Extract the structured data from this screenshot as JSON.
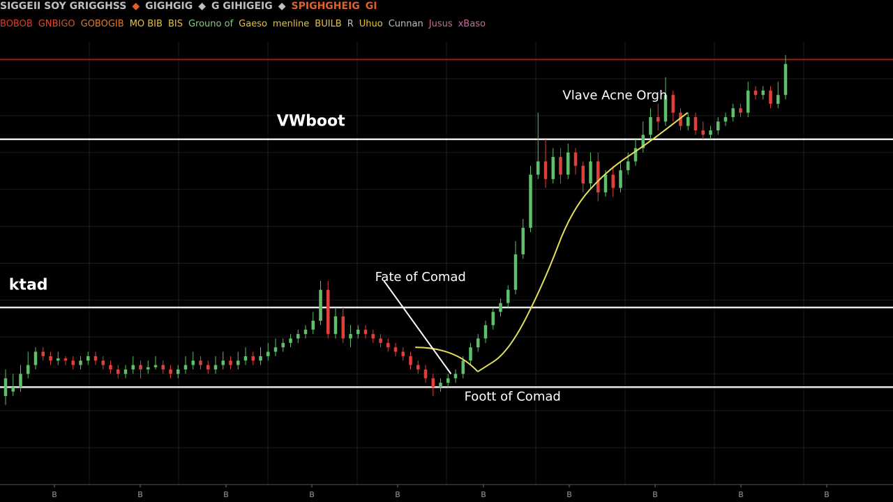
{
  "header": {
    "line1": [
      {
        "text": "SIGGEII SOY GRIGGHSS",
        "color": "#bfbfbf"
      },
      {
        "text": "◆",
        "color": "#e0602a"
      },
      {
        "text": "GIGHGIG",
        "color": "#bfbfbf"
      },
      {
        "text": "◆",
        "color": "#bfbfbf"
      },
      {
        "text": "G GIHIGEIG",
        "color": "#bfbfbf"
      },
      {
        "text": "◆",
        "color": "#bfbfbf"
      },
      {
        "text": "SPIGHGHEIG",
        "color": "#e0602a"
      },
      {
        "text": "GI",
        "color": "#e0602a"
      }
    ],
    "line2": [
      {
        "text": "BOBOB",
        "color": "#e03a2a"
      },
      {
        "text": "GNBIGO",
        "color": "#e04a2a"
      },
      {
        "text": "GOBOGIB",
        "color": "#e07a2a"
      },
      {
        "text": "MO BIB",
        "color": "#e8c23a"
      },
      {
        "text": "BIS",
        "color": "#e8c23a"
      },
      {
        "text": "Grouno of",
        "color": "#7fd17a"
      },
      {
        "text": "Gaeso",
        "color": "#e8c23a"
      },
      {
        "text": "menline",
        "color": "#e8c23a"
      },
      {
        "text": "BUILB",
        "color": "#e8c23a"
      },
      {
        "text": "R",
        "color": "#bfbfbf"
      },
      {
        "text": "Uhuo",
        "color": "#e8c23a"
      },
      {
        "text": "Cunnan",
        "color": "#bfbfbf"
      },
      {
        "text": "Jusus",
        "color": "#c86a9a"
      },
      {
        "text": "xBaso",
        "color": "#c86a9a"
      }
    ]
  },
  "chart_data": {
    "type": "candlestick",
    "title": "",
    "xlabel": "",
    "ylabel": "",
    "ylim": [
      0,
      100
    ],
    "x_ticks": [
      "B",
      "B",
      "B",
      "B",
      "B",
      "B",
      "B",
      "B",
      "B",
      "B"
    ],
    "colors": {
      "up": "#5fbf6a",
      "down": "#e0403a",
      "level": "#e8e8e8",
      "top_level": "#9b1c1c",
      "curve": "#e4e05a",
      "trendline": "#ffffff"
    },
    "levels": [
      {
        "name": "top_level",
        "value": 96.0
      },
      {
        "name": "VWboot",
        "label": "VWboot",
        "value": 78.0
      },
      {
        "name": "ktad",
        "label": "ktad",
        "value": 40.0
      },
      {
        "name": "base",
        "value": 22.0
      }
    ],
    "annotations": [
      {
        "text": "Vlave Acne Orgh",
        "x": 63,
        "y": 87
      },
      {
        "text": "VWboot",
        "x": 31,
        "y": 81
      },
      {
        "text": "ktad",
        "x": 1,
        "y": 44
      },
      {
        "text": "Fate of Comad",
        "x": 42,
        "y": 46
      },
      {
        "text": "Foott of Comad",
        "x": 52,
        "y": 19
      }
    ],
    "curve": [
      [
        53.5,
        25.5
      ],
      [
        57,
        30
      ],
      [
        61,
        46
      ],
      [
        64,
        62
      ],
      [
        68,
        71
      ],
      [
        72.5,
        77
      ],
      [
        77,
        84
      ]
    ],
    "trendline": [
      [
        43,
        46
      ],
      [
        50.5,
        25
      ]
    ],
    "candles": [
      [
        20,
        24,
        18,
        26
      ],
      [
        21,
        22,
        20,
        25
      ],
      [
        22,
        25,
        21,
        27
      ],
      [
        25,
        27,
        24,
        30
      ],
      [
        27,
        30,
        26,
        31
      ],
      [
        30,
        29,
        28,
        31
      ],
      [
        29,
        28,
        27,
        30
      ],
      [
        28,
        28.5,
        27,
        30
      ],
      [
        28.5,
        28,
        27,
        29
      ],
      [
        28,
        27,
        26,
        29
      ],
      [
        27,
        28,
        26,
        29
      ],
      [
        28,
        29,
        27,
        30
      ],
      [
        29,
        28,
        27,
        30
      ],
      [
        28,
        27,
        26,
        29
      ],
      [
        27,
        26,
        25,
        28
      ],
      [
        26,
        25,
        24,
        27
      ],
      [
        25,
        26,
        24,
        27
      ],
      [
        26,
        27,
        25,
        29
      ],
      [
        27,
        26,
        24,
        28
      ],
      [
        26,
        26.5,
        25,
        28
      ],
      [
        26.5,
        27,
        26,
        29
      ],
      [
        27,
        26,
        25,
        28
      ],
      [
        26,
        25,
        24,
        27
      ],
      [
        25,
        26,
        24,
        27
      ],
      [
        26,
        27,
        25,
        29
      ],
      [
        27,
        28,
        26,
        30
      ],
      [
        28,
        27,
        26,
        29
      ],
      [
        27,
        26,
        25,
        28
      ],
      [
        26,
        27,
        25,
        29
      ],
      [
        27,
        28,
        26,
        30
      ],
      [
        28,
        27,
        26,
        29
      ],
      [
        27,
        28,
        26,
        30
      ],
      [
        28,
        29,
        27,
        31
      ],
      [
        29,
        28,
        27,
        30
      ],
      [
        28,
        29,
        27,
        31
      ],
      [
        29,
        30,
        28,
        32
      ],
      [
        30,
        31,
        29,
        33
      ],
      [
        31,
        32,
        30,
        33
      ],
      [
        32,
        33,
        31,
        34
      ],
      [
        33,
        34,
        32,
        35
      ],
      [
        34,
        35,
        33,
        36
      ],
      [
        35,
        37,
        34,
        39
      ],
      [
        37,
        44,
        36,
        46
      ],
      [
        44,
        34,
        33,
        46
      ],
      [
        34,
        38,
        33,
        40
      ],
      [
        38,
        33,
        32,
        40
      ],
      [
        33,
        34,
        31,
        36
      ],
      [
        34,
        35,
        33,
        36
      ],
      [
        35,
        34,
        33,
        36
      ],
      [
        34,
        33,
        32,
        35
      ],
      [
        33,
        32,
        31,
        34
      ],
      [
        32,
        31,
        30,
        33
      ],
      [
        31,
        30,
        29,
        32
      ],
      [
        30,
        29,
        28,
        31
      ],
      [
        29,
        27,
        26,
        30
      ],
      [
        27,
        26,
        25,
        28
      ],
      [
        26,
        24,
        23,
        27
      ],
      [
        24,
        22,
        20,
        25
      ],
      [
        22,
        23,
        21,
        24
      ],
      [
        23,
        24,
        22,
        25
      ],
      [
        24,
        25,
        23,
        26
      ],
      [
        25,
        28,
        24,
        29
      ],
      [
        28,
        31,
        27,
        32
      ],
      [
        31,
        33,
        30,
        34
      ],
      [
        33,
        36,
        32,
        37
      ],
      [
        36,
        39,
        35,
        40
      ],
      [
        39,
        41,
        38,
        42
      ],
      [
        41,
        44,
        40,
        45
      ],
      [
        44,
        52,
        43,
        55
      ],
      [
        52,
        58,
        51,
        60
      ],
      [
        58,
        70,
        57,
        72
      ],
      [
        70,
        73,
        69,
        84
      ],
      [
        73,
        69,
        67,
        78
      ],
      [
        69,
        74,
        68,
        76
      ],
      [
        74,
        70,
        68,
        76
      ],
      [
        70,
        75,
        69,
        77
      ],
      [
        75,
        72,
        70,
        76
      ],
      [
        72,
        68,
        66,
        73
      ],
      [
        68,
        73,
        67,
        75
      ],
      [
        73,
        66,
        64,
        75
      ],
      [
        66,
        70,
        65,
        71
      ],
      [
        70,
        67,
        65,
        72
      ],
      [
        67,
        71,
        66,
        73
      ],
      [
        71,
        73,
        70,
        75
      ],
      [
        73,
        76,
        72,
        78
      ],
      [
        76,
        79,
        75,
        82
      ],
      [
        79,
        83,
        78,
        85
      ],
      [
        83,
        82,
        80,
        86
      ],
      [
        82,
        88,
        81,
        92
      ],
      [
        88,
        84,
        82,
        89
      ],
      [
        84,
        81,
        80,
        85
      ],
      [
        81,
        83,
        80,
        84
      ],
      [
        83,
        80,
        79,
        84
      ],
      [
        80,
        79,
        78,
        82
      ],
      [
        79,
        80,
        78,
        81
      ],
      [
        80,
        82,
        79,
        83
      ],
      [
        82,
        83,
        81,
        84
      ],
      [
        83,
        85,
        82,
        86
      ],
      [
        85,
        84,
        83,
        86
      ],
      [
        84,
        89,
        83,
        91
      ],
      [
        89,
        88,
        87,
        90
      ],
      [
        88,
        89,
        87,
        90
      ],
      [
        89,
        86,
        85,
        90
      ],
      [
        86,
        88,
        85,
        91
      ],
      [
        88,
        95,
        87,
        97
      ]
    ]
  }
}
